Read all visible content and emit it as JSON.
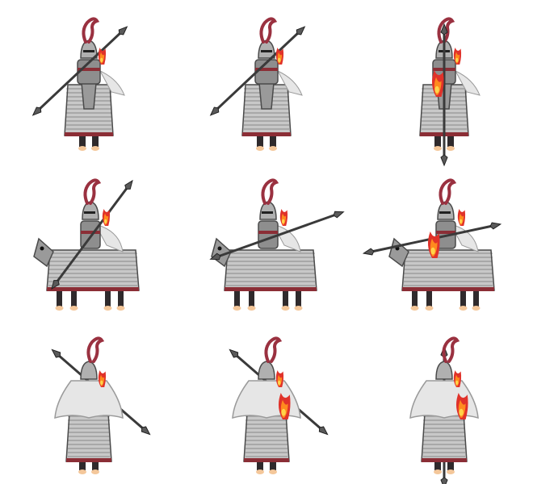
{
  "sprite_sheet": {
    "rows": 3,
    "cols": 3,
    "frames": [
      {
        "row": 0,
        "col": 0,
        "view": "front",
        "pose": "spear-diagonal-left",
        "flame": false
      },
      {
        "row": 0,
        "col": 1,
        "view": "front",
        "pose": "spear-diagonal-left",
        "flame": false
      },
      {
        "row": 0,
        "col": 2,
        "view": "front",
        "pose": "spear-vertical",
        "flame": true
      },
      {
        "row": 1,
        "col": 0,
        "view": "side",
        "pose": "spear-raised",
        "flame": false
      },
      {
        "row": 1,
        "col": 1,
        "view": "side",
        "pose": "spear-level",
        "flame": false
      },
      {
        "row": 1,
        "col": 2,
        "view": "side",
        "pose": "spear-thrust",
        "flame": true
      },
      {
        "row": 2,
        "col": 0,
        "view": "back",
        "pose": "spear-diagonal-right",
        "flame": false
      },
      {
        "row": 2,
        "col": 1,
        "view": "back",
        "pose": "spear-diagonal-right",
        "flame": true
      },
      {
        "row": 2,
        "col": 2,
        "view": "back",
        "pose": "spear-vertical",
        "flame": true
      }
    ]
  },
  "colors": {
    "background": "#ffffff",
    "armor_light": "#c8c8c8",
    "armor_mid": "#8e8e8e",
    "armor_dark": "#4a4a4a",
    "trim_red": "#8b2e36",
    "plume_red": "#9a3140",
    "fire_red": "#e0322a",
    "fire_orange": "#ff8a1e",
    "fire_yellow": "#ffd34a",
    "cape_white": "#e6e6e6",
    "horse_dark": "#2f2a2c",
    "hoof": "#f4c79a"
  }
}
